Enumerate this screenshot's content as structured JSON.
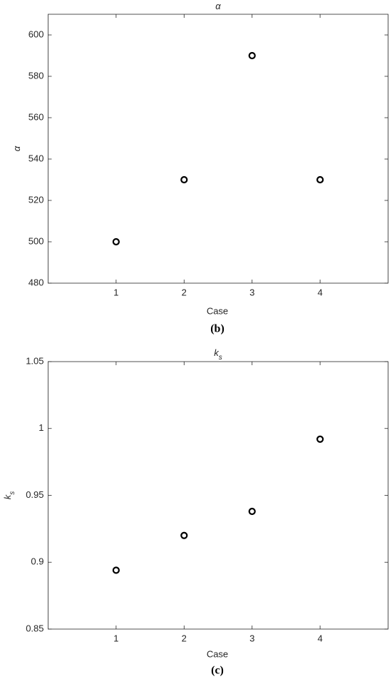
{
  "chart_data": [
    {
      "type": "scatter",
      "title": "α",
      "ylabel": "α",
      "xlabel": "Case",
      "caption": "(b)",
      "x": [
        1,
        2,
        3,
        4
      ],
      "values": [
        500,
        530,
        590,
        530
      ],
      "color": "#000000",
      "xlim": [
        0,
        5
      ],
      "xticks": [
        1,
        2,
        3,
        4
      ],
      "ylim": [
        480,
        610
      ],
      "yticks": [
        480,
        500,
        520,
        540,
        560,
        580,
        600
      ]
    },
    {
      "type": "scatter",
      "title": "k",
      "title_subscript": "s",
      "ylabel": "k",
      "ylabel_subscript": "s",
      "xlabel": "Case",
      "caption": "(c)",
      "x": [
        1,
        2,
        3,
        4
      ],
      "values": [
        0.894,
        0.92,
        0.938,
        0.992
      ],
      "color": "#000000",
      "xlim": [
        0,
        5
      ],
      "xticks": [
        1,
        2,
        3,
        4
      ],
      "ylim": [
        0.85,
        1.05
      ],
      "yticks": [
        0.85,
        0.9,
        0.95,
        1,
        1.05
      ]
    }
  ]
}
